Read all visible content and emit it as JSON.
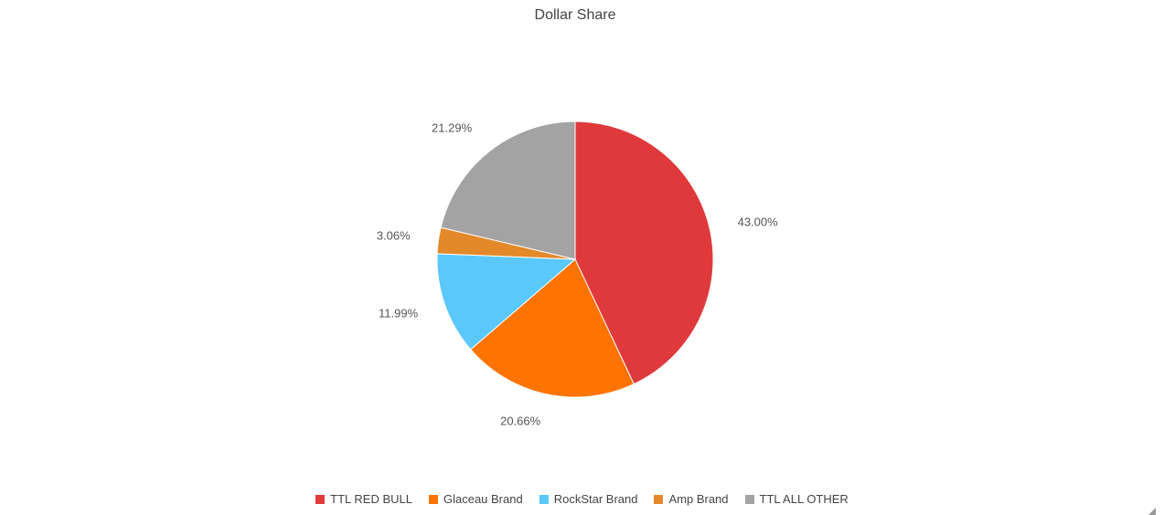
{
  "chart_data": {
    "type": "pie",
    "title": "Dollar Share",
    "categories": [
      "TTL RED BULL",
      "Glaceau Brand",
      "RockStar Brand",
      "Amp Brand",
      "TTL ALL OTHER"
    ],
    "values": [
      43.0,
      20.66,
      11.99,
      3.06,
      21.29
    ],
    "value_labels": [
      "43.00%",
      "20.66%",
      "11.99%",
      "3.06%",
      "21.29%"
    ],
    "colors": [
      "#e0393c",
      "#ff7400",
      "#5bc8fb",
      "#e3892a",
      "#a3a3a3"
    ],
    "legend": "bottom"
  }
}
